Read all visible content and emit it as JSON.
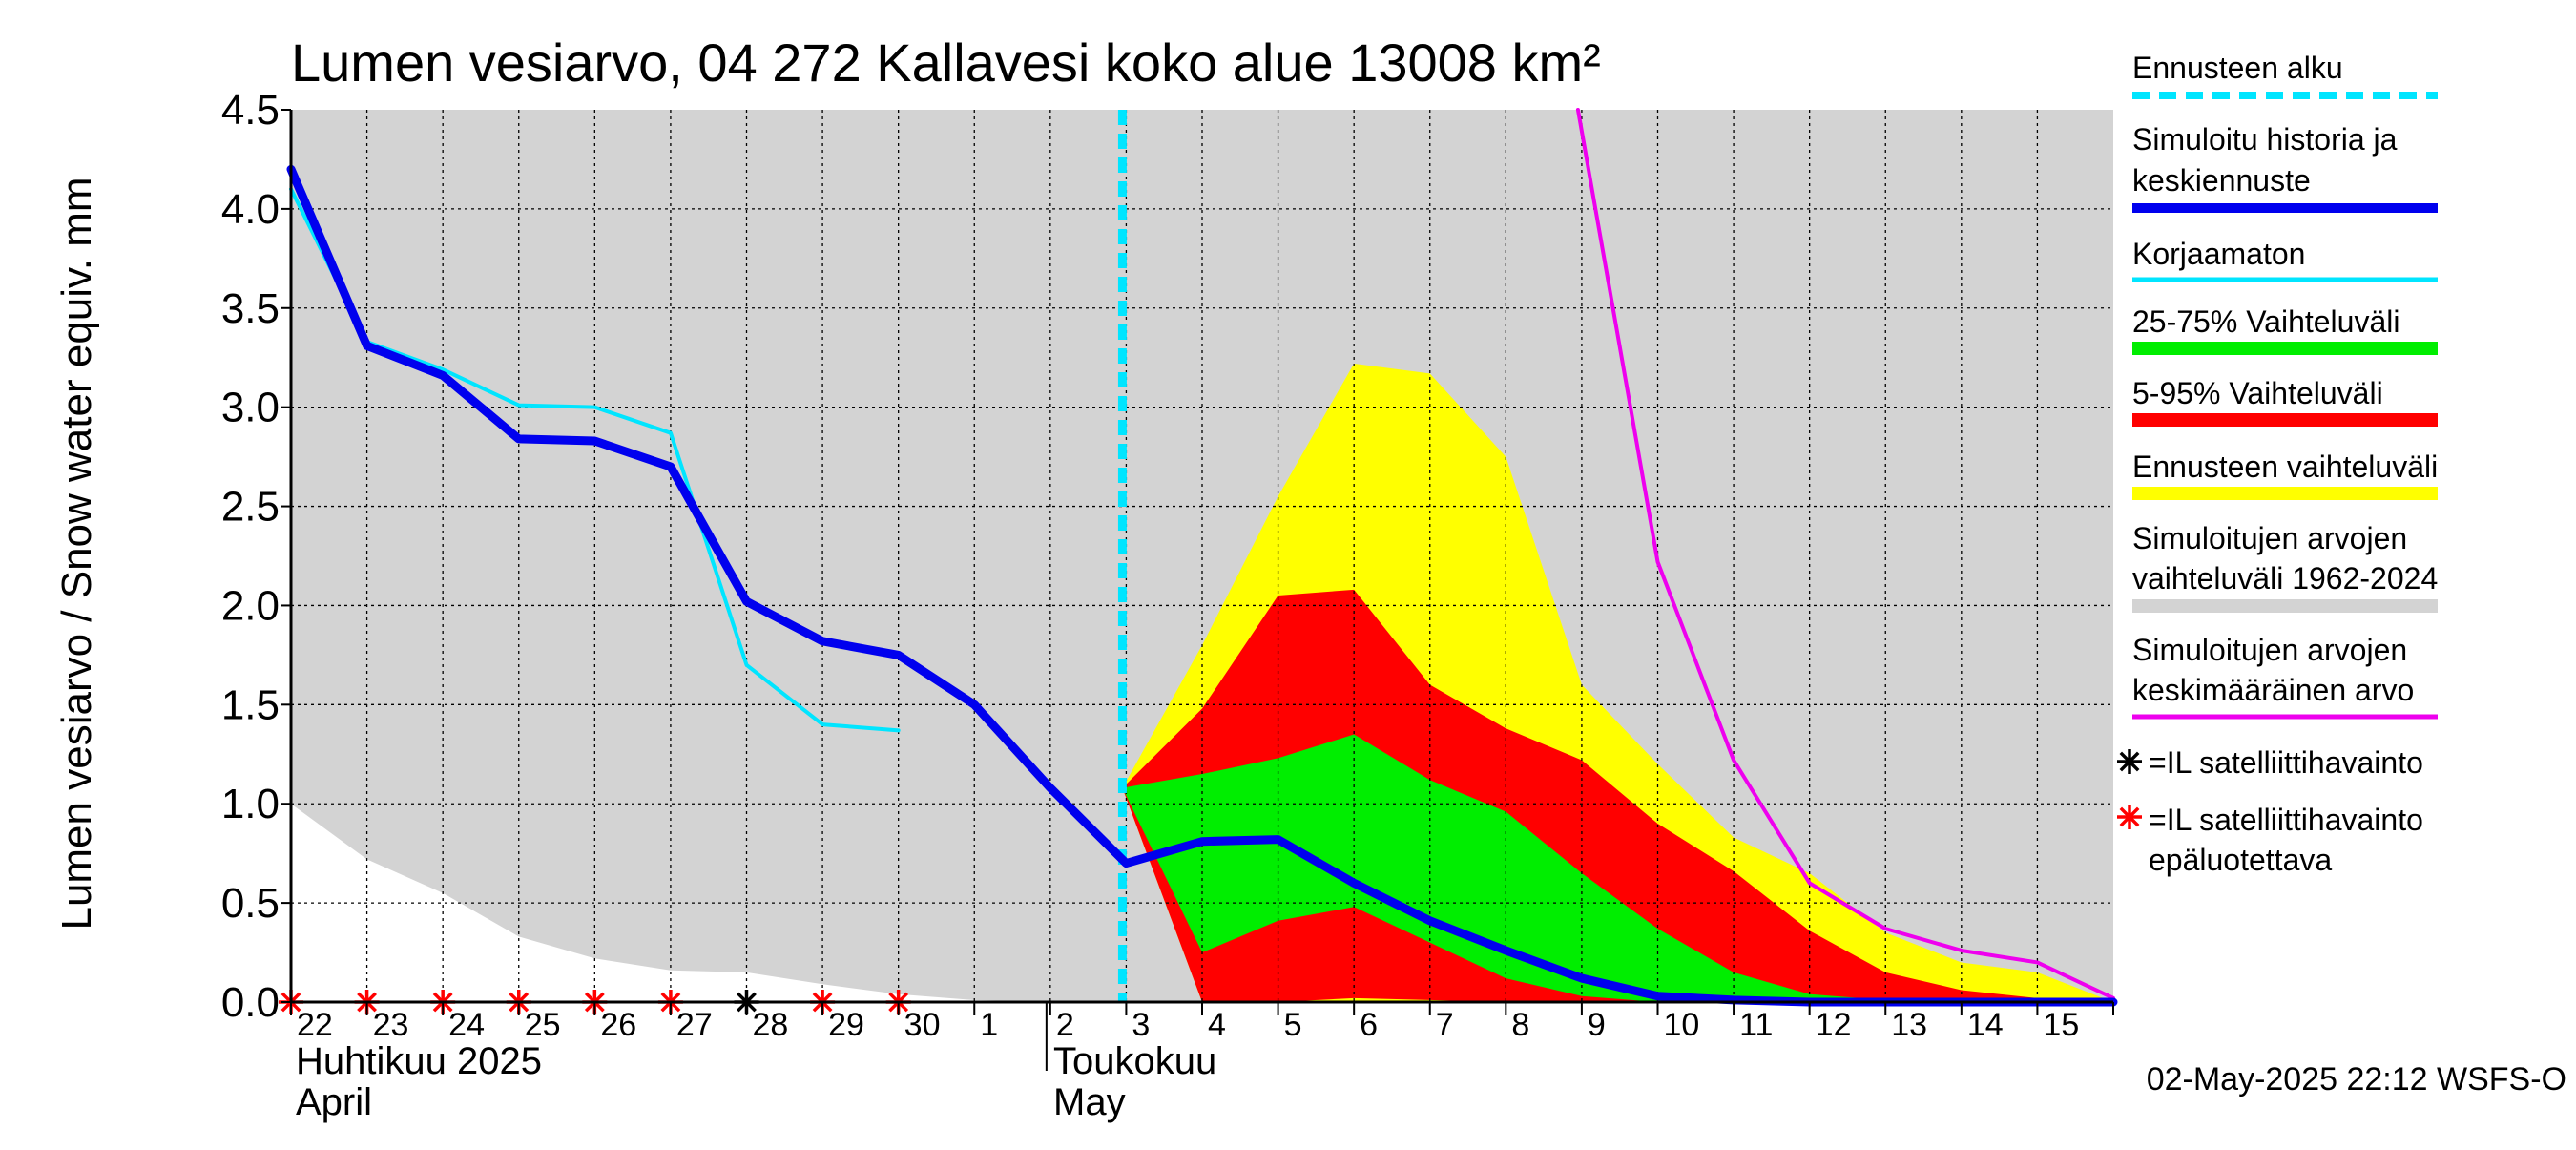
{
  "chart_data": {
    "type": "area",
    "title": "Lumen vesiarvo, 04 272 Kallavesi koko alue 13008 km²",
    "ylabel": "Lumen vesiarvo / Snow water equiv.    mm",
    "ylim": [
      0,
      4.5
    ],
    "yticks": [
      "0.0",
      "0.5",
      "1.0",
      "1.5",
      "2.0",
      "2.5",
      "3.0",
      "3.5",
      "4.0",
      "4.5"
    ],
    "x_dates": [
      "22",
      "23",
      "24",
      "25",
      "26",
      "27",
      "28",
      "29",
      "30",
      "1",
      "2",
      "3",
      "4",
      "5",
      "6",
      "7",
      "8",
      "9",
      "10",
      "11",
      "12",
      "13",
      "14",
      "15"
    ],
    "x_month_labels": {
      "april_fi": "Huhtikuu  2025",
      "april_en": "April",
      "may_fi": "Toukokuu",
      "may_en": "May"
    },
    "grid": true,
    "forecast_start_day": 10.95,
    "series": [
      {
        "name": "Simuloitujen arvojen vaihteluväli 1962-2024",
        "kind": "band",
        "color": "#d3d3d3",
        "x": [
          0,
          1,
          2,
          3,
          4,
          5,
          6,
          7,
          8,
          9,
          10,
          11,
          12,
          13,
          14,
          15,
          16,
          17,
          18,
          19,
          20,
          21,
          22,
          23,
          24
        ],
        "upper": [
          4.5,
          4.5,
          4.5,
          4.5,
          4.5,
          4.5,
          4.5,
          4.5,
          4.5,
          4.5,
          4.5,
          4.5,
          4.5,
          4.5,
          4.5,
          4.5,
          4.5,
          4.5,
          4.5,
          4.5,
          4.5,
          4.5,
          4.5,
          4.5,
          4.5
        ],
        "lower": [
          1.0,
          0.72,
          0.55,
          0.33,
          0.22,
          0.16,
          0.15,
          0.09,
          0.04,
          0.01,
          0.0,
          0.0,
          0.0,
          0.0,
          0.0,
          0.0,
          0.0,
          0.0,
          0.0,
          0.0,
          0.0,
          0.0,
          0.0,
          0.0,
          0.0
        ]
      },
      {
        "name": "Ennusteen vaihteluväli",
        "kind": "band",
        "color": "#ffff00",
        "x": [
          10.95,
          12,
          13,
          14,
          15,
          16,
          17,
          18,
          19,
          20,
          21,
          22,
          23,
          24
        ],
        "upper": [
          1.08,
          1.8,
          2.55,
          3.22,
          3.17,
          2.75,
          1.6,
          1.2,
          0.83,
          0.65,
          0.35,
          0.2,
          0.15,
          0.0
        ],
        "lower": [
          1.08,
          0.0,
          0.0,
          0.0,
          0.0,
          0.0,
          0.0,
          0.0,
          0.0,
          0.0,
          0.0,
          0.0,
          0.0,
          0.0
        ]
      },
      {
        "name": "5-95% Vaihteluväli",
        "kind": "band",
        "color": "#ff0000",
        "x": [
          10.95,
          12,
          13,
          14,
          15,
          16,
          17,
          18,
          19,
          20,
          21,
          22,
          23,
          24
        ],
        "upper": [
          1.08,
          1.48,
          2.05,
          2.08,
          1.6,
          1.38,
          1.22,
          0.9,
          0.66,
          0.36,
          0.15,
          0.06,
          0.02,
          0.0
        ],
        "lower": [
          1.08,
          0.0,
          0.0,
          0.02,
          0.01,
          0.0,
          0.0,
          0.0,
          0.0,
          0.0,
          0.0,
          0.0,
          0.0,
          0.0
        ]
      },
      {
        "name": "25-75% Vaihteluväli",
        "kind": "band",
        "color": "#00ee00",
        "x": [
          10.95,
          12,
          13,
          14,
          15,
          16,
          17,
          18,
          19,
          20,
          21,
          22,
          23,
          24
        ],
        "upper": [
          1.08,
          1.15,
          1.23,
          1.35,
          1.12,
          0.96,
          0.65,
          0.37,
          0.15,
          0.04,
          0.01,
          0.0,
          0.0,
          0.0
        ],
        "lower": [
          1.08,
          0.25,
          0.41,
          0.48,
          0.3,
          0.12,
          0.03,
          0.0,
          0.0,
          0.0,
          0.0,
          0.0,
          0.0,
          0.0
        ]
      },
      {
        "name": "Simuloitujen arvojen keskimääräinen arvo",
        "kind": "line",
        "color": "#ee00ee",
        "width": 4,
        "x": [
          16.95,
          18,
          19,
          20,
          21,
          22,
          23,
          24
        ],
        "y": [
          4.5,
          2.22,
          1.22,
          0.6,
          0.37,
          0.26,
          0.2,
          0.02
        ]
      },
      {
        "name": "Korjaamaton",
        "kind": "line",
        "color": "#00e5ff",
        "width": 4,
        "x": [
          0,
          1,
          2,
          3,
          4,
          5,
          6,
          7,
          8
        ],
        "y": [
          4.1,
          3.33,
          3.19,
          3.01,
          3.0,
          2.87,
          1.7,
          1.4,
          1.37
        ]
      },
      {
        "name": "Simuloitu historia ja keskiennuste",
        "kind": "line",
        "color": "#0000ee",
        "width": 9,
        "x": [
          0,
          1,
          2,
          3,
          4,
          5,
          6,
          7,
          8,
          9,
          10,
          11,
          12,
          13,
          14,
          15,
          16,
          17,
          18,
          19,
          20,
          21,
          22,
          23,
          24
        ],
        "y": [
          4.2,
          3.31,
          3.16,
          2.84,
          2.83,
          2.7,
          2.02,
          1.82,
          1.75,
          1.5,
          1.08,
          0.7,
          0.81,
          0.82,
          0.6,
          0.41,
          0.26,
          0.12,
          0.03,
          0.01,
          0.0,
          0.0,
          0.0,
          0.0,
          0.0
        ]
      }
    ],
    "satellite_observations": {
      "reliable": {
        "x": [
          6
        ],
        "y": [
          0.0
        ]
      },
      "unreliable": {
        "x": [
          0,
          1,
          2,
          3,
          4,
          5,
          7,
          8
        ],
        "y": [
          0.0,
          0.0,
          0.0,
          0.0,
          0.0,
          0.0,
          0.0,
          0.0
        ]
      }
    },
    "legend": {
      "placement": "right",
      "items": [
        {
          "lines": [
            "Ennusteen alku"
          ],
          "color": "#00e5ff",
          "style": "dashed"
        },
        {
          "lines": [
            "Simuloitu historia ja",
            "keskiennuste"
          ],
          "color": "#0000ee",
          "style": "line"
        },
        {
          "lines": [
            "Korjaamaton"
          ],
          "color": "#00e5ff",
          "style": "line"
        },
        {
          "lines": [
            "25-75% Vaihteluväli"
          ],
          "color": "#00ee00",
          "style": "band"
        },
        {
          "lines": [
            "5-95% Vaihteluväli"
          ],
          "color": "#ff0000",
          "style": "band"
        },
        {
          "lines": [
            "Ennusteen vaihteluväli"
          ],
          "color": "#ffff00",
          "style": "band"
        },
        {
          "lines": [
            "Simuloitujen arvojen",
            "vaihteluväli 1962-2024"
          ],
          "color": "#d3d3d3",
          "style": "band"
        },
        {
          "lines": [
            "Simuloitujen arvojen",
            "keskimääräinen arvo"
          ],
          "color": "#ee00ee",
          "style": "line"
        },
        {
          "lines": [
            "=IL satelliittihavainto"
          ],
          "color": "#000000",
          "style": "star"
        },
        {
          "lines": [
            "=IL satelliittihavainto",
            "epäluotettava"
          ],
          "color": "#ff0000",
          "style": "star"
        }
      ]
    },
    "footer_timestamp": "02-May-2025 22:12 WSFS-O"
  }
}
